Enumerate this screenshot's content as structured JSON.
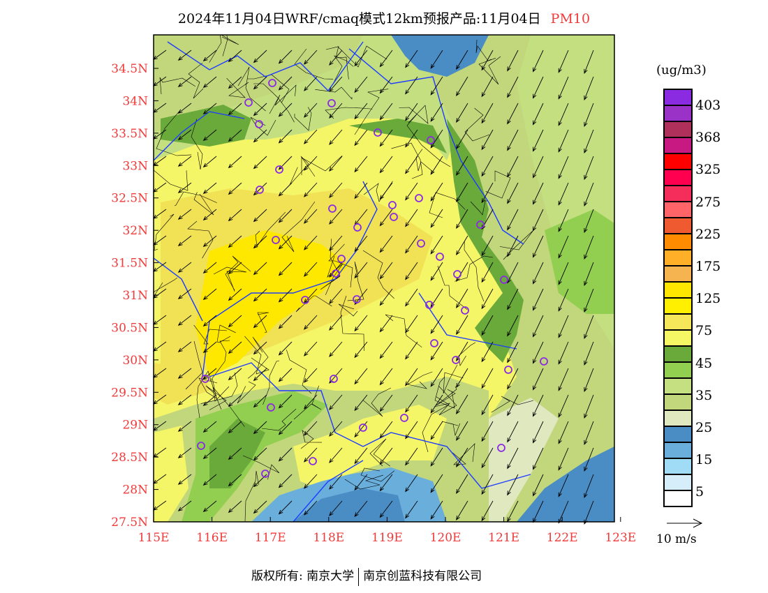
{
  "title": {
    "main": "2024年11月04日WRF/cmaq模式12km预报产品:11月04日",
    "pollutant": "PM10"
  },
  "axes": {
    "lon_labels": [
      "115E",
      "116E",
      "117E",
      "118E",
      "119E",
      "120E",
      "121E",
      "122E",
      "123E"
    ],
    "lat_labels": [
      "34.5N",
      "34N",
      "33.5N",
      "33N",
      "32.5N",
      "32N",
      "31.5N",
      "31N",
      "30.5N",
      "30N",
      "29.5N",
      "29N",
      "28.5N",
      "28N",
      "27.5N"
    ]
  },
  "legend": {
    "unit": "(ug/m3)",
    "colors": [
      "#8a2be2",
      "#9a32c8",
      "#b0305c",
      "#c81882",
      "#ff0000",
      "#ff0050",
      "#f52d5a",
      "#ff6468",
      "#f05a30",
      "#ff8c00",
      "#ffaf28",
      "#f5b450",
      "#ffe600",
      "#fff000",
      "#f5e65a",
      "#f5f864",
      "#6aaa3a",
      "#92cf50",
      "#c4e080",
      "#c2d67c",
      "#e0e8c0",
      "#4a8cc4",
      "#6aaedc",
      "#a0dcf5",
      "#d6eefa",
      "#ffffff"
    ],
    "labels": [
      "403",
      "368",
      "325",
      "275",
      "225",
      "175",
      "125",
      "75",
      "45",
      "35",
      "25",
      "15",
      "5"
    ],
    "wind_ref": "10 m/s"
  },
  "footer": {
    "copyright": "版权所有: 南京大学",
    "company": "南京创蓝科技有限公司"
  }
}
